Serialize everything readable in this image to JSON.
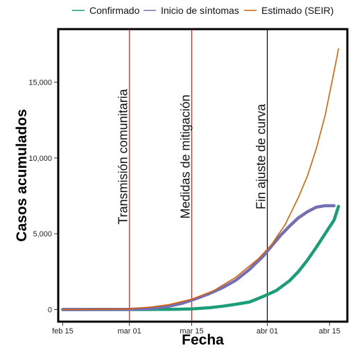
{
  "chart_data": {
    "type": "line",
    "xlabel": "Fecha",
    "ylabel": "Casos acumulados",
    "xlim": [
      "2020-02-14",
      "2020-04-19"
    ],
    "ylim": [
      -800,
      18500
    ],
    "x_ticks": [
      {
        "date": "2020-02-15",
        "label": "feb 15"
      },
      {
        "date": "2020-03-01",
        "label": "mar 01"
      },
      {
        "date": "2020-03-15",
        "label": "mar 15"
      },
      {
        "date": "2020-04-01",
        "label": "abr 01"
      },
      {
        "date": "2020-04-15",
        "label": "abr 15"
      }
    ],
    "y_ticks": [
      {
        "value": 0,
        "label": "0"
      },
      {
        "value": 5000,
        "label": "5,000"
      },
      {
        "value": 10000,
        "label": "10,000"
      },
      {
        "value": 15000,
        "label": "15,000"
      }
    ],
    "legend_position": "top",
    "series": [
      {
        "name": "Confirmado",
        "color": "#1b9e77",
        "points": [
          [
            "2020-02-15",
            0
          ],
          [
            "2020-03-01",
            0
          ],
          [
            "2020-03-10",
            10
          ],
          [
            "2020-03-15",
            40
          ],
          [
            "2020-03-19",
            120
          ],
          [
            "2020-03-22",
            220
          ],
          [
            "2020-03-25",
            350
          ],
          [
            "2020-03-28",
            500
          ],
          [
            "2020-03-31",
            850
          ],
          [
            "2020-04-03",
            1250
          ],
          [
            "2020-04-06",
            1900
          ],
          [
            "2020-04-08",
            2500
          ],
          [
            "2020-04-10",
            3250
          ],
          [
            "2020-04-12",
            4100
          ],
          [
            "2020-04-14",
            5000
          ],
          [
            "2020-04-16",
            5900
          ],
          [
            "2020-04-17",
            6800
          ]
        ]
      },
      {
        "name": "Inicio de síntomas",
        "color": "#7570b3",
        "points": [
          [
            "2020-02-15",
            0
          ],
          [
            "2020-03-01",
            10
          ],
          [
            "2020-03-06",
            80
          ],
          [
            "2020-03-10",
            230
          ],
          [
            "2020-03-13",
            420
          ],
          [
            "2020-03-16",
            720
          ],
          [
            "2020-03-19",
            1050
          ],
          [
            "2020-03-22",
            1450
          ],
          [
            "2020-03-25",
            1950
          ],
          [
            "2020-03-28",
            2650
          ],
          [
            "2020-03-31",
            3500
          ],
          [
            "2020-04-02",
            4200
          ],
          [
            "2020-04-04",
            4900
          ],
          [
            "2020-04-06",
            5500
          ],
          [
            "2020-04-08",
            6050
          ],
          [
            "2020-04-10",
            6450
          ],
          [
            "2020-04-12",
            6750
          ],
          [
            "2020-04-14",
            6850
          ],
          [
            "2020-04-16",
            6850
          ]
        ]
      },
      {
        "name": "Estimado (SEIR)",
        "color": "#d95f02",
        "points": [
          [
            "2020-02-15",
            0
          ],
          [
            "2020-03-01",
            40
          ],
          [
            "2020-03-06",
            170
          ],
          [
            "2020-03-10",
            330
          ],
          [
            "2020-03-15",
            680
          ],
          [
            "2020-03-20",
            1250
          ],
          [
            "2020-03-25",
            2150
          ],
          [
            "2020-03-30",
            3350
          ],
          [
            "2020-04-02",
            4300
          ],
          [
            "2020-04-05",
            5600
          ],
          [
            "2020-04-08",
            7400
          ],
          [
            "2020-04-10",
            8800
          ],
          [
            "2020-04-12",
            10600
          ],
          [
            "2020-04-14",
            12800
          ],
          [
            "2020-04-16",
            15700
          ],
          [
            "2020-04-17",
            17200
          ]
        ]
      }
    ],
    "vertical_lines": [
      {
        "date": "2020-03-01",
        "label": "Transmisión comunitaria",
        "color": "#d62728"
      },
      {
        "date": "2020-03-15",
        "label": "Medidas de mitigación",
        "color": "#d62728"
      },
      {
        "date": "2020-04-01",
        "label": "Fin ajuste de curva",
        "color": "#000000"
      }
    ]
  }
}
